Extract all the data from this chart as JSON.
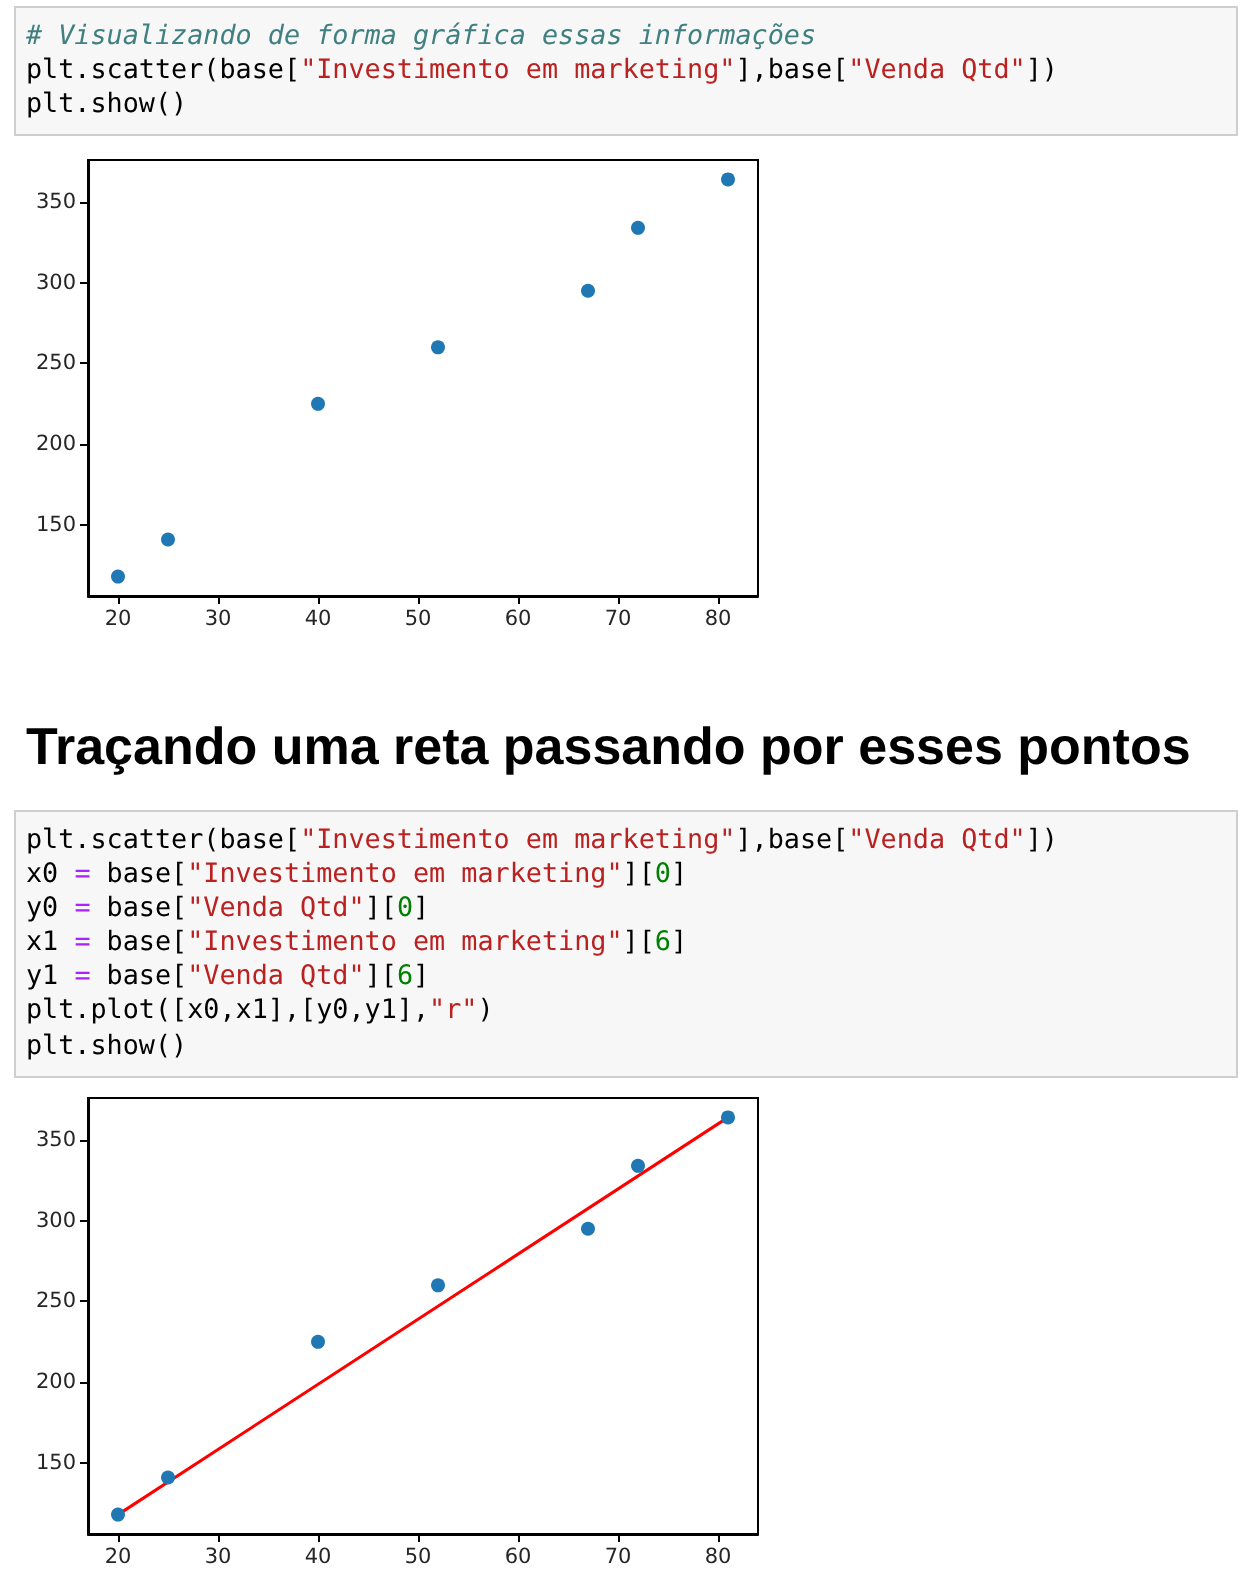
{
  "chart_data": [
    {
      "type": "scatter",
      "annotations": [
        "# Visualizando de forma gráfica essas informações",
        "plt.scatter(base[\"Investimento em marketing\"],base[\"Venda Qtd\"])",
        "plt.show()"
      ],
      "x": [
        20,
        25,
        40,
        52,
        67,
        72,
        81
      ],
      "series": [
        {
          "color": "#1f77b4",
          "values": [
            118,
            141,
            225,
            260,
            295,
            334,
            364
          ]
        }
      ],
      "xlim": [
        17,
        84
      ],
      "ylim": [
        106,
        376
      ],
      "xticks": [
        20,
        30,
        40,
        50,
        60,
        70,
        80
      ],
      "yticks": [
        150,
        200,
        250,
        300,
        350
      ],
      "marker": "circle"
    },
    {
      "type": "scatter",
      "title": "Traçando uma reta passando por esses pontos",
      "annotations": [
        "plt.scatter(base[\"Investimento em marketing\"],base[\"Venda Qtd\"])",
        "x0 = base[\"Investimento em marketing\"][0]",
        "y0 = base[\"Venda Qtd\"][0]",
        "x1 = base[\"Investimento em marketing\"][6]",
        "y1 = base[\"Venda Qtd\"][6]",
        "plt.plot([x0,x1],[y0,y1],\"r\")",
        "plt.show()"
      ],
      "x": [
        20,
        25,
        40,
        52,
        67,
        72,
        81
      ],
      "series": [
        {
          "color": "#1f77b4",
          "values": [
            118,
            141,
            225,
            260,
            295,
            334,
            364
          ]
        },
        {
          "type": "line",
          "x": [
            20,
            81
          ],
          "color": "#ff0000",
          "values": [
            118,
            364
          ],
          "marker": "none"
        }
      ],
      "xlim": [
        17,
        84
      ],
      "ylim": [
        106,
        376
      ],
      "xticks": [
        20,
        30,
        40,
        50,
        60,
        70,
        80
      ],
      "yticks": [
        150,
        200,
        250,
        300,
        350
      ],
      "marker": "circle"
    }
  ]
}
